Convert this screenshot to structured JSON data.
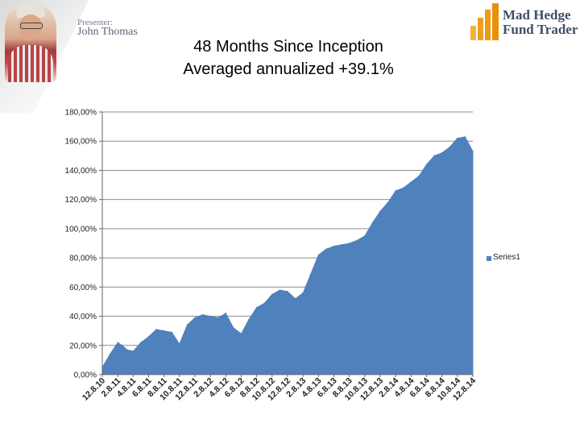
{
  "header": {
    "presenter_label": "Presenter:",
    "presenter_name": "John Thomas",
    "brand_line1": "Mad Hedge",
    "brand_line2": "Fund Trader",
    "title_line1": "48 Months Since Inception",
    "title_line2": "Averaged annualized +39.1%"
  },
  "colors": {
    "series": "#4f81bd",
    "axis": "#888888",
    "brand": "#3f4f66",
    "logo_orange": "#f0a020"
  },
  "chart_data": {
    "type": "area",
    "title": "",
    "xlabel": "",
    "ylabel": "",
    "ylim": [
      0,
      180
    ],
    "y_ticks": [
      0,
      20,
      40,
      60,
      80,
      100,
      120,
      140,
      160,
      180
    ],
    "y_tick_labels": [
      "0,00%",
      "20,00%",
      "40,00%",
      "60,00%",
      "80,00%",
      "100,00%",
      "120,00%",
      "140,00%",
      "160,00%",
      "180,00%"
    ],
    "x_tick_labels": [
      "12.8.10",
      "2.8.11",
      "4.8.11",
      "6.8.11",
      "8.8.11",
      "10.8.11",
      "12.8.11",
      "2.8.12",
      "4.8.12",
      "6.8.12",
      "8.8.12",
      "10.8.12",
      "12.8.12",
      "2.8.13",
      "4.8.13",
      "6.8.13",
      "8.8.13",
      "10.8.13",
      "12.8.13",
      "2.8.14",
      "4.8.14",
      "6.8.14",
      "8.8.14",
      "10.8.14",
      "12.8.14"
    ],
    "legend": "right",
    "series": [
      {
        "name": "Series1",
        "x": [
          0,
          0.5,
          1,
          1.3,
          1.6,
          2,
          2.5,
          3,
          3.5,
          4,
          4.5,
          5,
          5.5,
          6,
          6.5,
          7,
          7.5,
          8,
          8.5,
          9,
          9.5,
          10,
          10.5,
          11,
          11.5,
          12,
          12.5,
          13,
          13.5,
          14,
          14.5,
          15,
          15.5,
          16,
          16.5,
          17,
          17.5,
          18,
          18.5,
          19,
          19.5,
          20,
          20.5,
          21,
          21.5,
          22,
          22.5,
          23,
          23.5,
          24
        ],
        "values": [
          5,
          14,
          22,
          20,
          17,
          16,
          22,
          26,
          31,
          30,
          29,
          21,
          34,
          39,
          41,
          40,
          39,
          42,
          32,
          28,
          38,
          46,
          49,
          55,
          58,
          57,
          52,
          56,
          69,
          82,
          86,
          88,
          89,
          90,
          92,
          95,
          104,
          112,
          118,
          126,
          128,
          132,
          136,
          144,
          150,
          152,
          156,
          162,
          163,
          153
        ]
      }
    ]
  }
}
